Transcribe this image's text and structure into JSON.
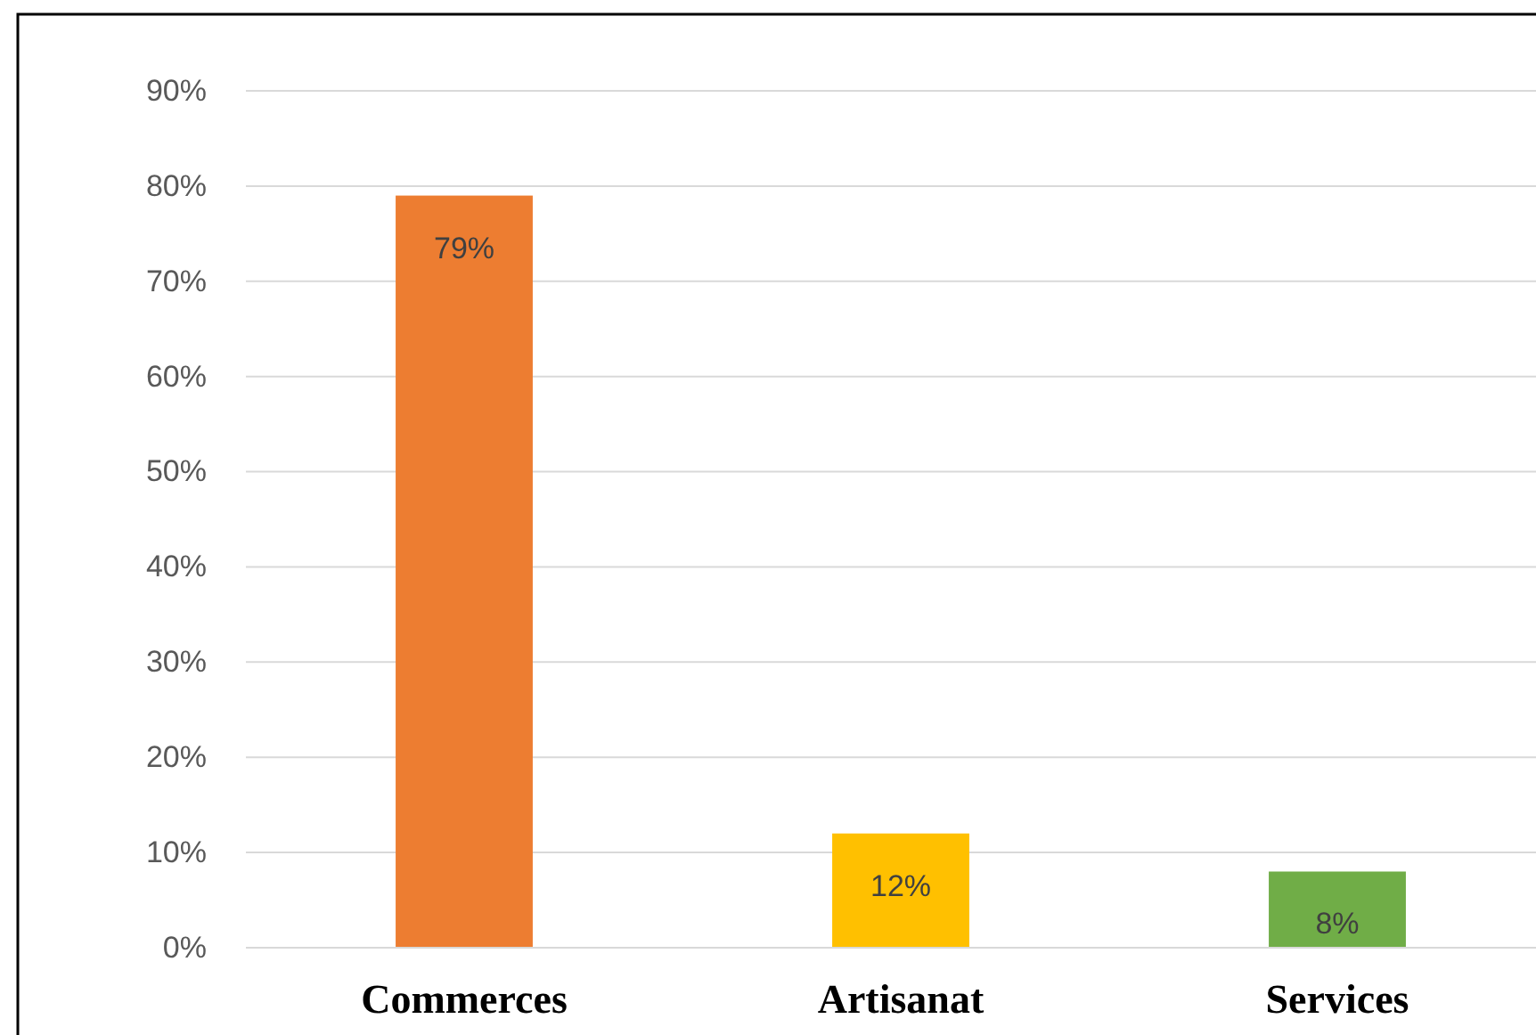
{
  "chart_data": {
    "type": "bar",
    "categories": [
      "Commerces",
      "Artisanat",
      "Services"
    ],
    "values": [
      79,
      12,
      8
    ],
    "colors": [
      "#ed7d31",
      "#ffc000",
      "#70ad47"
    ],
    "value_labels": [
      "79%",
      "12%",
      "8%"
    ],
    "ylim": [
      0,
      90
    ],
    "yticks": [
      {
        "value": 0,
        "label": "0%"
      },
      {
        "value": 10,
        "label": "10%"
      },
      {
        "value": 20,
        "label": "20%"
      },
      {
        "value": 30,
        "label": "30%"
      },
      {
        "value": 40,
        "label": "40%"
      },
      {
        "value": 50,
        "label": "50%"
      },
      {
        "value": 60,
        "label": "60%"
      },
      {
        "value": 70,
        "label": "70%"
      },
      {
        "value": 80,
        "label": "80%"
      },
      {
        "value": 90,
        "label": "90%"
      }
    ],
    "grid": "y"
  }
}
